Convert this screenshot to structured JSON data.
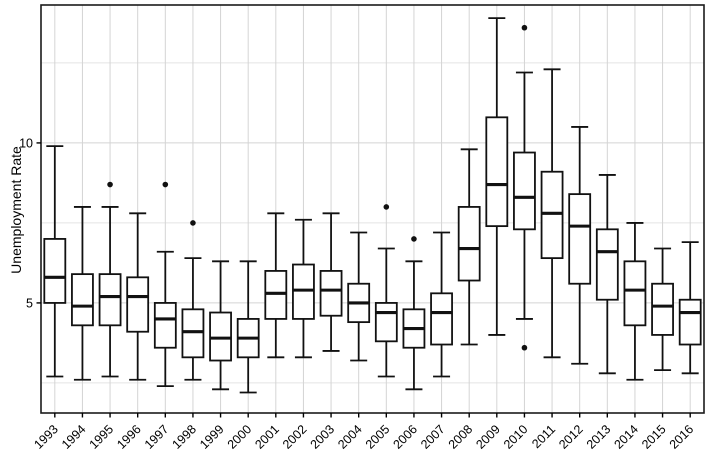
{
  "chart_data": {
    "type": "boxplot",
    "title": "",
    "xlabel": "",
    "ylabel": "Unemployment Rate",
    "categories": [
      "1993",
      "1994",
      "1995",
      "1996",
      "1997",
      "1998",
      "1999",
      "2000",
      "2001",
      "2002",
      "2003",
      "2004",
      "2005",
      "2006",
      "2007",
      "2008",
      "2009",
      "2010",
      "2011",
      "2012",
      "2013",
      "2014",
      "2015",
      "2016"
    ],
    "series": [
      {
        "year": "1993",
        "low": 2.7,
        "q1": 5.0,
        "median": 5.8,
        "q3": 7.0,
        "high": 9.9,
        "outliers": []
      },
      {
        "year": "1994",
        "low": 2.6,
        "q1": 4.3,
        "median": 4.9,
        "q3": 5.9,
        "high": 8.0,
        "outliers": []
      },
      {
        "year": "1995",
        "low": 2.7,
        "q1": 4.3,
        "median": 5.2,
        "q3": 5.9,
        "high": 8.0,
        "outliers": [
          8.7
        ]
      },
      {
        "year": "1996",
        "low": 2.6,
        "q1": 4.1,
        "median": 5.2,
        "q3": 5.8,
        "high": 7.8,
        "outliers": []
      },
      {
        "year": "1997",
        "low": 2.4,
        "q1": 3.6,
        "median": 4.5,
        "q3": 5.0,
        "high": 6.6,
        "outliers": [
          8.7
        ]
      },
      {
        "year": "1998",
        "low": 2.6,
        "q1": 3.3,
        "median": 4.1,
        "q3": 4.8,
        "high": 6.4,
        "outliers": [
          7.5
        ]
      },
      {
        "year": "1999",
        "low": 2.3,
        "q1": 3.2,
        "median": 3.9,
        "q3": 4.7,
        "high": 6.3,
        "outliers": []
      },
      {
        "year": "2000",
        "low": 2.2,
        "q1": 3.3,
        "median": 3.9,
        "q3": 4.5,
        "high": 6.3,
        "outliers": []
      },
      {
        "year": "2001",
        "low": 3.3,
        "q1": 4.5,
        "median": 5.3,
        "q3": 6.0,
        "high": 7.8,
        "outliers": []
      },
      {
        "year": "2002",
        "low": 3.3,
        "q1": 4.5,
        "median": 5.4,
        "q3": 6.2,
        "high": 7.6,
        "outliers": []
      },
      {
        "year": "2003",
        "low": 3.5,
        "q1": 4.6,
        "median": 5.4,
        "q3": 6.0,
        "high": 7.8,
        "outliers": []
      },
      {
        "year": "2004",
        "low": 3.2,
        "q1": 4.4,
        "median": 5.0,
        "q3": 5.6,
        "high": 7.2,
        "outliers": []
      },
      {
        "year": "2005",
        "low": 2.7,
        "q1": 3.8,
        "median": 4.7,
        "q3": 5.0,
        "high": 6.7,
        "outliers": [
          8.0
        ]
      },
      {
        "year": "2006",
        "low": 2.3,
        "q1": 3.6,
        "median": 4.2,
        "q3": 4.8,
        "high": 6.3,
        "outliers": [
          7.0
        ]
      },
      {
        "year": "2007",
        "low": 2.7,
        "q1": 3.7,
        "median": 4.7,
        "q3": 5.3,
        "high": 7.2,
        "outliers": []
      },
      {
        "year": "2008",
        "low": 3.7,
        "q1": 5.7,
        "median": 6.7,
        "q3": 8.0,
        "high": 9.8,
        "outliers": []
      },
      {
        "year": "2009",
        "low": 4.0,
        "q1": 7.4,
        "median": 8.7,
        "q3": 10.8,
        "high": 13.9,
        "outliers": []
      },
      {
        "year": "2010",
        "low": 4.5,
        "q1": 7.3,
        "median": 8.3,
        "q3": 9.7,
        "high": 12.2,
        "outliers": [
          13.6,
          3.6
        ]
      },
      {
        "year": "2011",
        "low": 3.3,
        "q1": 6.4,
        "median": 7.8,
        "q3": 9.1,
        "high": 12.3,
        "outliers": []
      },
      {
        "year": "2012",
        "low": 3.1,
        "q1": 5.6,
        "median": 7.4,
        "q3": 8.4,
        "high": 10.5,
        "outliers": []
      },
      {
        "year": "2013",
        "low": 2.8,
        "q1": 5.1,
        "median": 6.6,
        "q3": 7.3,
        "high": 9.0,
        "outliers": []
      },
      {
        "year": "2014",
        "low": 2.6,
        "q1": 4.3,
        "median": 5.4,
        "q3": 6.3,
        "high": 7.5,
        "outliers": []
      },
      {
        "year": "2015",
        "low": 2.9,
        "q1": 4.0,
        "median": 4.9,
        "q3": 5.6,
        "high": 6.7,
        "outliers": []
      },
      {
        "year": "2016",
        "low": 2.8,
        "q1": 3.7,
        "median": 4.7,
        "q3": 5.1,
        "high": 6.9,
        "outliers": []
      }
    ],
    "yticks": [
      5,
      10
    ],
    "ytick_labels": [
      "5",
      "10"
    ],
    "yticks_minor": [
      2.5,
      7.5,
      12.5
    ],
    "ylim": [
      1.56,
      14.31
    ],
    "grid": "on",
    "legend": "none",
    "colors": {
      "box_stroke": "#111111",
      "box_fill": "#ffffff",
      "grid_major": "#d4d4d4",
      "grid_minor": "#e4e4e4",
      "panel_border": "#1a1a1a",
      "text": "#000000",
      "background": "#ffffff"
    }
  }
}
